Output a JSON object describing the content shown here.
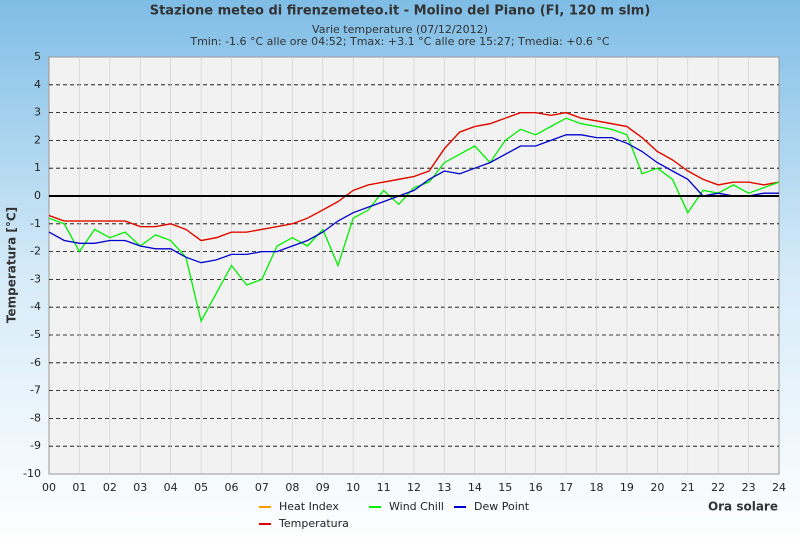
{
  "chart_data": {
    "type": "line",
    "title": "Stazione meteo di firenzemeteo.it - Molino del Piano (FI, 120 m slm)",
    "subtitle": "Varie temperature (07/12/2012)",
    "annotation": "Tmin: -1.6 °C alle ore 04:52; Tmax: +3.1 °C alle ore 15:27; Tmedia: +0.6 °C",
    "y_label": "Temperatura [°C]",
    "x_label": "Ora solare",
    "xlim": [
      0,
      24
    ],
    "xticks": [
      {
        "value": 0,
        "label": "00"
      },
      {
        "value": 1,
        "label": "01"
      },
      {
        "value": 2,
        "label": "02"
      },
      {
        "value": 3,
        "label": "03"
      },
      {
        "value": 4,
        "label": "04"
      },
      {
        "value": 5,
        "label": "05"
      },
      {
        "value": 6,
        "label": "06"
      },
      {
        "value": 7,
        "label": "07"
      },
      {
        "value": 8,
        "label": "08"
      },
      {
        "value": 9,
        "label": "09"
      },
      10,
      11,
      12,
      13,
      14,
      15,
      16,
      17,
      18,
      19,
      20,
      21,
      22,
      23,
      24
    ],
    "ylim": [
      -10,
      5
    ],
    "yticks": [
      -10,
      -9,
      -8,
      -7,
      -6,
      -5,
      -4,
      -3,
      -2,
      -1,
      0,
      1,
      2,
      3,
      4,
      5
    ],
    "grid": true,
    "zero_line": true,
    "x": [
      0,
      0.5,
      1,
      1.5,
      2,
      2.5,
      3,
      3.5,
      4,
      4.5,
      5,
      5.5,
      6,
      6.5,
      7,
      7.5,
      8,
      8.5,
      9,
      9.5,
      10,
      10.5,
      11,
      11.5,
      12,
      12.5,
      13,
      13.5,
      14,
      14.5,
      15,
      15.5,
      16,
      16.5,
      17,
      17.5,
      18,
      18.5,
      19,
      19.5,
      20,
      20.5,
      21,
      21.5,
      22,
      22.5,
      23,
      23.5,
      24
    ],
    "series": [
      {
        "name": "Heat Index",
        "color": "#ff9900",
        "values": [
          -0.7,
          -0.9,
          -0.9,
          -0.9,
          -0.9,
          -0.9,
          -1.1,
          -1.1,
          -1.0,
          -1.2,
          -1.6,
          -1.5,
          -1.3,
          -1.3,
          -1.2,
          -1.1,
          -1.0,
          -0.8,
          -0.5,
          -0.2,
          0.2,
          0.4,
          0.5,
          0.6,
          0.7,
          0.9,
          1.7,
          2.3,
          2.5,
          2.6,
          2.8,
          3.0,
          3.0,
          2.9,
          3.0,
          2.8,
          2.7,
          2.6,
          2.5,
          2.1,
          1.6,
          1.3,
          0.9,
          0.6,
          0.4,
          0.5,
          0.5,
          0.4,
          0.5
        ]
      },
      {
        "name": "Temperatura",
        "color": "#dd0000",
        "values": [
          -0.7,
          -0.9,
          -0.9,
          -0.9,
          -0.9,
          -0.9,
          -1.1,
          -1.1,
          -1.0,
          -1.2,
          -1.6,
          -1.5,
          -1.3,
          -1.3,
          -1.2,
          -1.1,
          -1.0,
          -0.8,
          -0.5,
          -0.2,
          0.2,
          0.4,
          0.5,
          0.6,
          0.7,
          0.9,
          1.7,
          2.3,
          2.5,
          2.6,
          2.8,
          3.0,
          3.0,
          2.9,
          3.0,
          2.8,
          2.7,
          2.6,
          2.5,
          2.1,
          1.6,
          1.3,
          0.9,
          0.6,
          0.4,
          0.5,
          0.5,
          0.4,
          0.5
        ]
      },
      {
        "name": "Wind Chill",
        "color": "#00ee00",
        "values": [
          -0.8,
          -1.0,
          -2.0,
          -1.2,
          -1.5,
          -1.3,
          -1.8,
          -1.4,
          -1.6,
          -2.2,
          -4.5,
          -3.5,
          -2.5,
          -3.2,
          -3.0,
          -1.8,
          -1.5,
          -1.8,
          -1.2,
          -2.5,
          -0.8,
          -0.5,
          0.2,
          -0.3,
          0.3,
          0.5,
          1.2,
          1.5,
          1.8,
          1.2,
          2.0,
          2.4,
          2.2,
          2.5,
          2.8,
          2.6,
          2.5,
          2.4,
          2.2,
          0.8,
          1.0,
          0.6,
          -0.6,
          0.2,
          0.1,
          0.4,
          0.1,
          0.3,
          0.5
        ]
      },
      {
        "name": "Dew Point",
        "color": "#0000cc",
        "values": [
          -1.3,
          -1.6,
          -1.7,
          -1.7,
          -1.6,
          -1.6,
          -1.8,
          -1.9,
          -1.9,
          -2.2,
          -2.4,
          -2.3,
          -2.1,
          -2.1,
          -2.0,
          -2.0,
          -1.8,
          -1.6,
          -1.3,
          -0.9,
          -0.6,
          -0.4,
          -0.2,
          0.0,
          0.2,
          0.6,
          0.9,
          0.8,
          1.0,
          1.2,
          1.5,
          1.8,
          1.8,
          2.0,
          2.2,
          2.2,
          2.1,
          2.1,
          1.9,
          1.6,
          1.2,
          0.9,
          0.6,
          0.0,
          0.1,
          0.0,
          0.0,
          0.1,
          0.1
        ]
      }
    ]
  }
}
